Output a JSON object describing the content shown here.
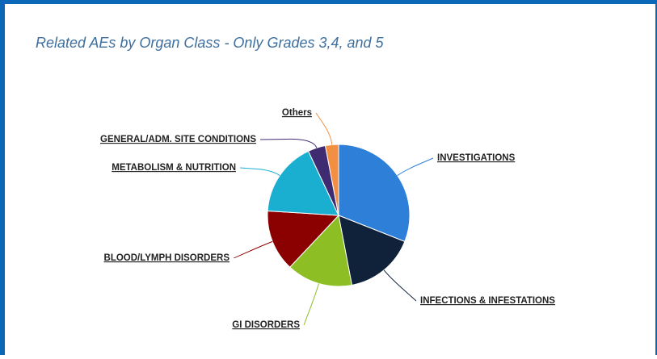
{
  "chart_data": {
    "type": "pie",
    "title": "Related AEs by Organ Class - Only Grades 3,4, and 5",
    "categories": [
      "INVESTIGATIONS",
      "INFECTIONS & INFESTATIONS",
      "GI DISORDERS",
      "BLOOD/LYMPH DISORDERS",
      "METABOLISM & NUTRITION",
      "GENERAL/ADM. SITE CONDITIONS",
      "Others"
    ],
    "values": [
      31,
      16,
      15,
      14,
      17,
      4,
      3
    ],
    "colors": [
      "#2e7fd8",
      "#10223a",
      "#8dbe23",
      "#8b0000",
      "#1aaed1",
      "#3f2b72",
      "#f28f43"
    ]
  }
}
